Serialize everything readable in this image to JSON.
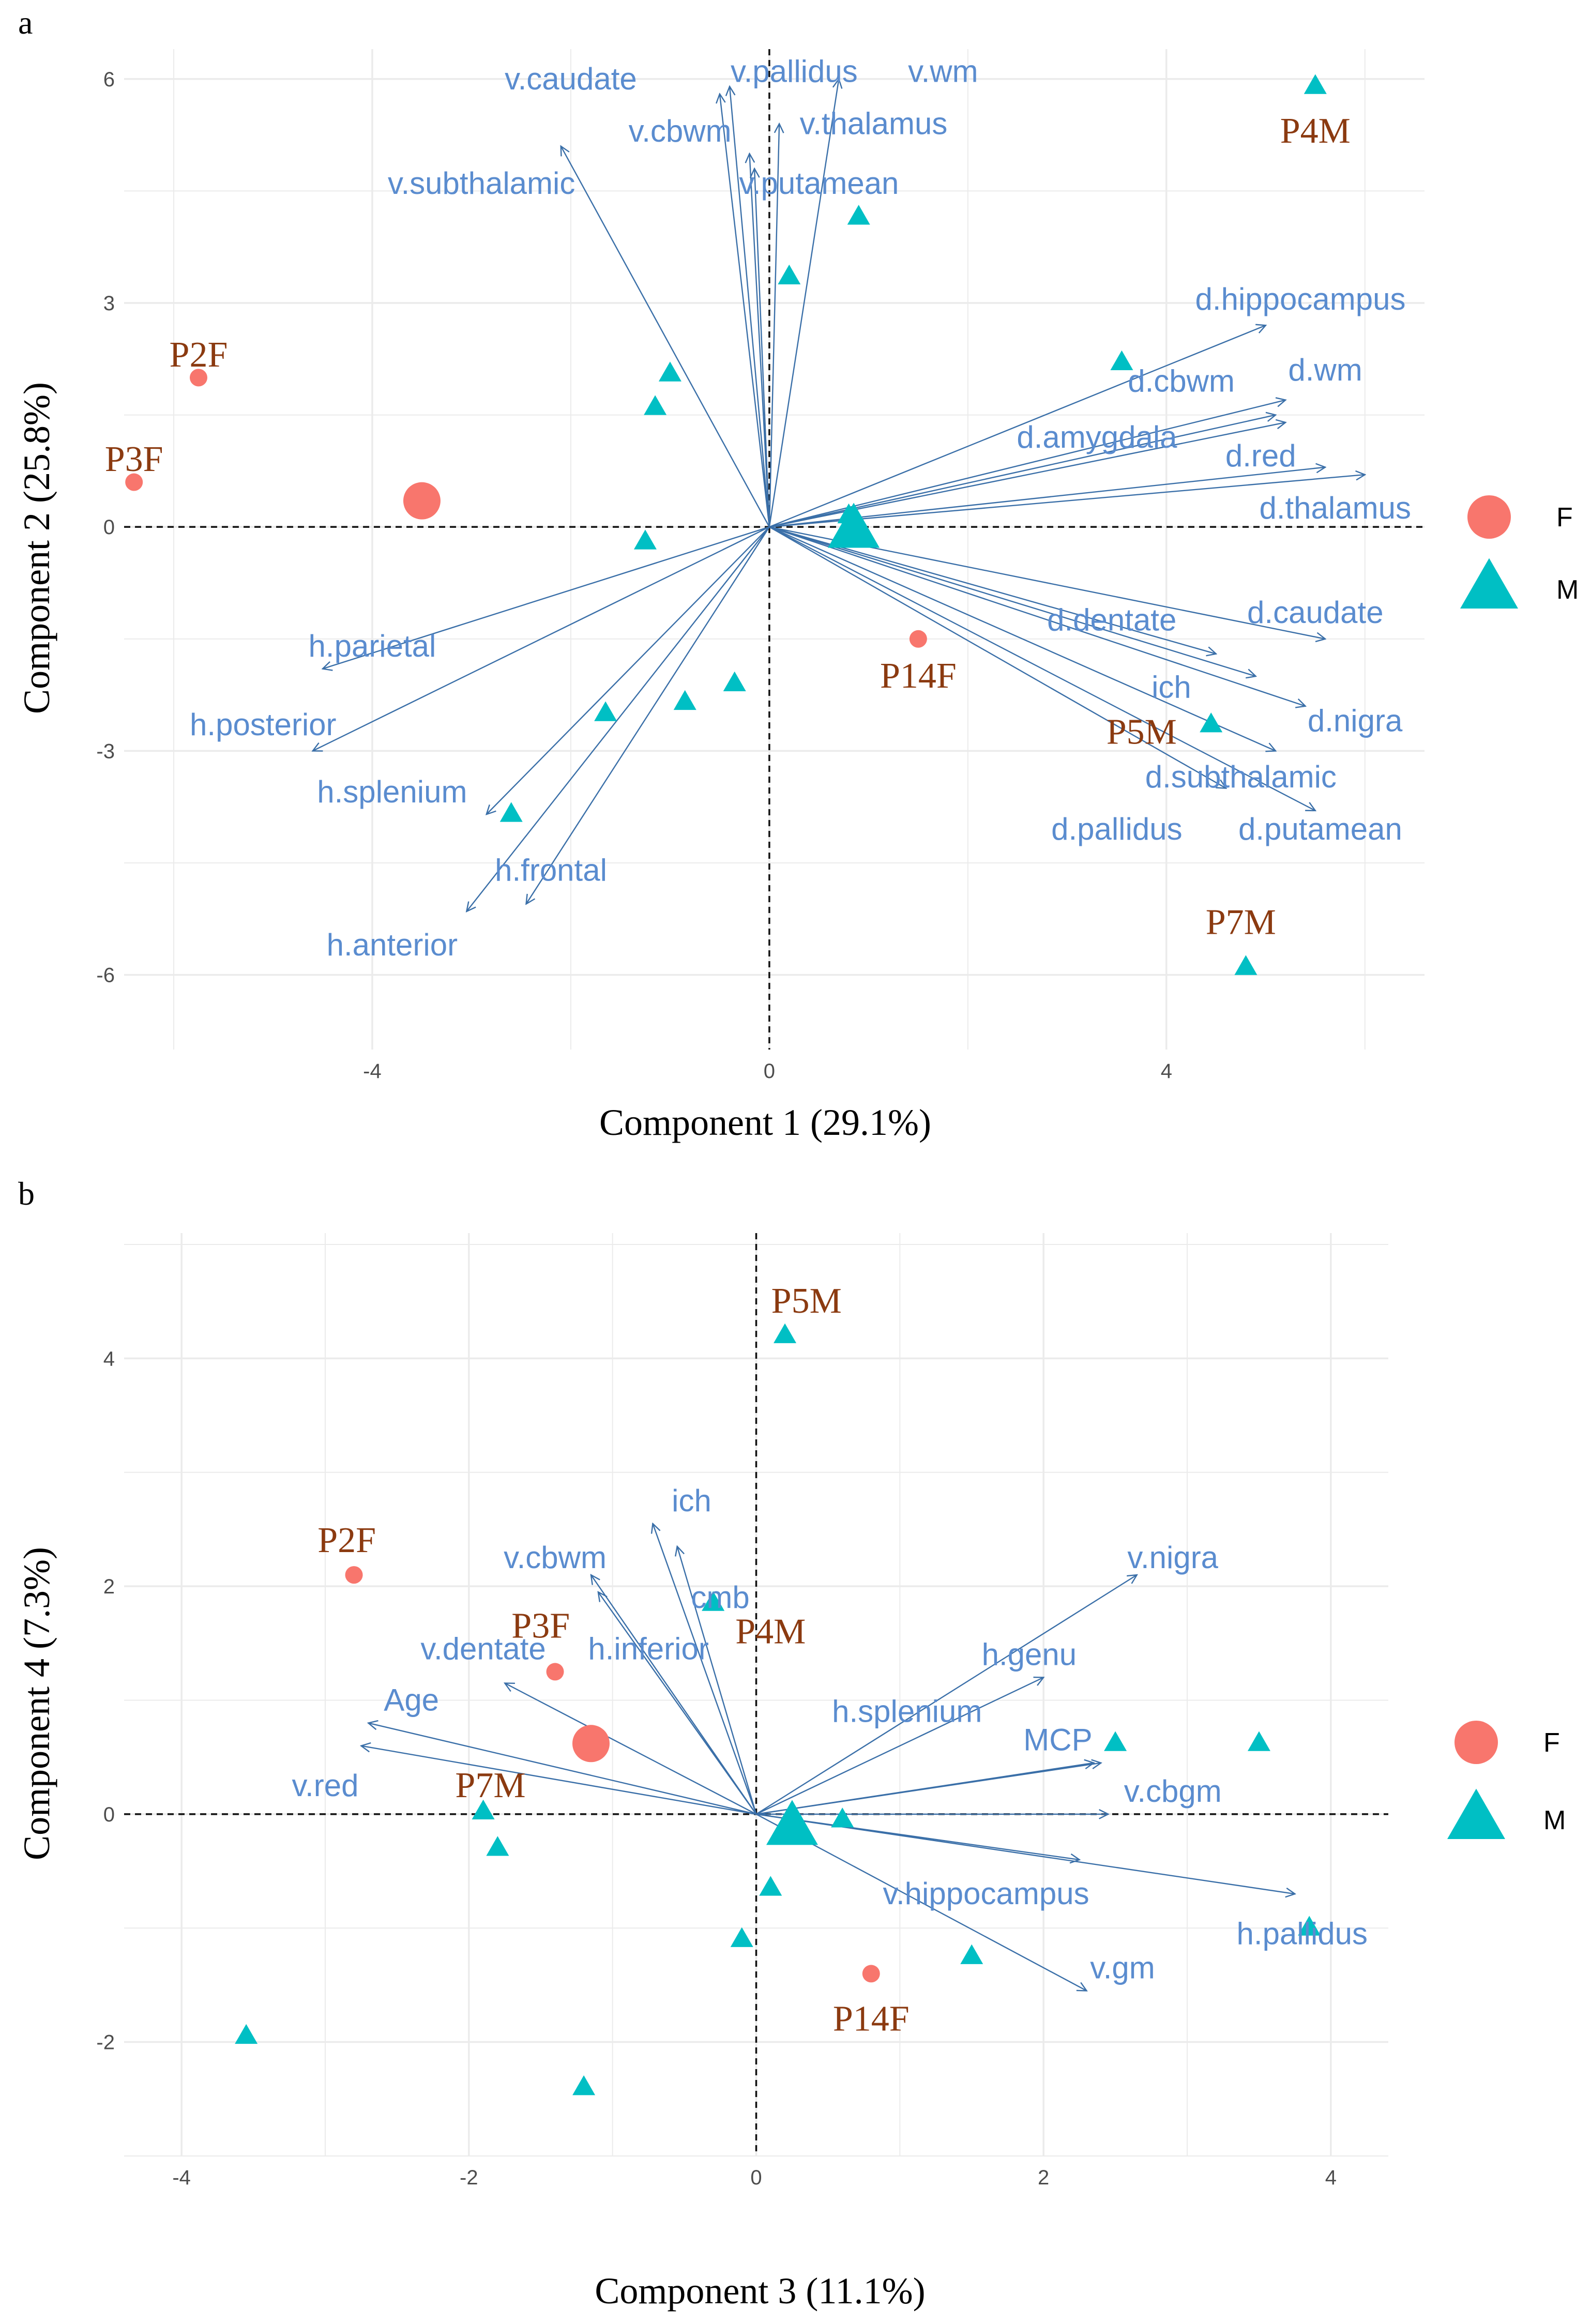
{
  "colors": {
    "panel_bg": "#ffffff",
    "grid": "#ebebeb",
    "arrow": "#3a6fa8",
    "var_label": "#5a8ccf",
    "female": "#f8766d",
    "male": "#00bfc4",
    "patient_label": "#8b3a10",
    "axis_text": "#4d4d4d",
    "zero_line": "#111111"
  },
  "chart_data": [
    {
      "type": "scatter",
      "panel_label": "a",
      "subtype": "biplot",
      "xlabel": "Component 1 (29.1%)",
      "ylabel": "Component 2 (25.8%)",
      "xlim": [
        -6.5,
        6.6
      ],
      "ylim": [
        -7.0,
        6.4
      ],
      "xticks": [
        {
          "v": -4,
          "t": "-4"
        },
        {
          "v": 0,
          "t": "0"
        },
        {
          "v": 4,
          "t": "4"
        }
      ],
      "yticks": [
        {
          "v": -6,
          "t": "-6"
        },
        {
          "v": -3,
          "t": "-3"
        },
        {
          "v": 0,
          "t": "0"
        },
        {
          "v": 3,
          "t": "3"
        },
        {
          "v": 6,
          "t": "6"
        }
      ],
      "legend": {
        "position": "right",
        "entries": [
          {
            "key": "F",
            "label": "F"
          },
          {
            "key": "M",
            "label": "M"
          }
        ]
      },
      "loadings": [
        {
          "name": "v.caudate",
          "x": -2.1,
          "y": 5.1,
          "lx": -2.0,
          "ly": 6.0
        },
        {
          "name": "v.pallidus",
          "x": -0.4,
          "y": 5.9,
          "lx": 0.25,
          "ly": 6.1
        },
        {
          "name": "v.wm",
          "x": 0.7,
          "y": 6.0,
          "lx": 1.75,
          "ly": 6.1
        },
        {
          "name": "v.cbwm",
          "x": -0.5,
          "y": 5.8,
          "lx": -0.9,
          "ly": 5.3
        },
        {
          "name": "v.thalamus",
          "x": 0.1,
          "y": 5.4,
          "lx": 1.05,
          "ly": 5.4
        },
        {
          "name": "v.subthalamic",
          "x": -0.15,
          "y": 4.8,
          "lx": -2.9,
          "ly": 4.6
        },
        {
          "name": "v.putamean",
          "x": -0.2,
          "y": 5.0,
          "lx": 0.5,
          "ly": 4.6
        },
        {
          "name": "d.hippocampus",
          "x": 5.0,
          "y": 2.7,
          "lx": 5.35,
          "ly": 3.05
        },
        {
          "name": "d.wm",
          "x": 5.2,
          "y": 1.7,
          "lx": 5.6,
          "ly": 2.1
        },
        {
          "name": "d.cbwm",
          "x": 5.1,
          "y": 1.5,
          "lx": 4.15,
          "ly": 1.95
        },
        {
          "name": "d.amygdala",
          "x": 5.2,
          "y": 1.4,
          "lx": 3.3,
          "ly": 1.2
        },
        {
          "name": "d.red",
          "x": 5.6,
          "y": 0.8,
          "lx": 4.95,
          "ly": 0.95
        },
        {
          "name": "d.thalamus",
          "x": 6.0,
          "y": 0.7,
          "lx": 5.7,
          "ly": 0.25
        },
        {
          "name": "d.dentate",
          "x": 4.5,
          "y": -1.7,
          "lx": 3.45,
          "ly": -1.25
        },
        {
          "name": "d.caudate",
          "x": 5.6,
          "y": -1.5,
          "lx": 5.5,
          "ly": -1.15
        },
        {
          "name": "ich",
          "x": 4.9,
          "y": -2.0,
          "lx": 4.05,
          "ly": -2.15
        },
        {
          "name": "d.nigra",
          "x": 5.4,
          "y": -2.4,
          "lx": 5.9,
          "ly": -2.6
        },
        {
          "name": "d.subthalamic",
          "x": 5.1,
          "y": -3.0,
          "lx": 4.75,
          "ly": -3.35
        },
        {
          "name": "d.pallidus",
          "x": 4.6,
          "y": -3.5,
          "lx": 3.5,
          "ly": -4.05
        },
        {
          "name": "d.putamean",
          "x": 5.5,
          "y": -3.8,
          "lx": 5.55,
          "ly": -4.05
        },
        {
          "name": "h.parietal",
          "x": -4.5,
          "y": -1.9,
          "lx": -4.0,
          "ly": -1.6
        },
        {
          "name": "h.posterior",
          "x": -4.6,
          "y": -3.0,
          "lx": -5.1,
          "ly": -2.65
        },
        {
          "name": "h.splenium",
          "x": -2.85,
          "y": -3.85,
          "lx": -3.8,
          "ly": -3.55
        },
        {
          "name": "h.frontal",
          "x": -2.45,
          "y": -5.05,
          "lx": -2.2,
          "ly": -4.6
        },
        {
          "name": "h.anterior",
          "x": -3.05,
          "y": -5.15,
          "lx": -3.8,
          "ly": -5.6
        }
      ],
      "points": [
        {
          "label": "P2F",
          "group": "F",
          "x": -5.75,
          "y": 2.0,
          "lx": -5.75,
          "ly": 2.3
        },
        {
          "label": "P3F",
          "group": "F",
          "x": -6.4,
          "y": 0.6,
          "lx": -6.4,
          "ly": 0.9
        },
        {
          "label": "P14F",
          "group": "F",
          "x": 1.5,
          "y": -1.5,
          "lx": 1.5,
          "ly": -2.0
        },
        {
          "label": "",
          "group": "M",
          "x": 5.5,
          "y": 5.9
        },
        {
          "label": "",
          "group": "M",
          "x": 0.9,
          "y": 4.15
        },
        {
          "label": "",
          "group": "M",
          "x": 0.2,
          "y": 3.35
        },
        {
          "label": "",
          "group": "M",
          "x": 3.55,
          "y": 2.2
        },
        {
          "label": "",
          "group": "M",
          "x": -1.0,
          "y": 2.05
        },
        {
          "label": "",
          "group": "M",
          "x": -1.15,
          "y": 1.6
        },
        {
          "label": "",
          "group": "M",
          "x": 0.8,
          "y": 0.15
        },
        {
          "label": "",
          "group": "M",
          "x": -1.25,
          "y": -0.2
        },
        {
          "label": "",
          "group": "M",
          "x": -0.35,
          "y": -2.1
        },
        {
          "label": "",
          "group": "M",
          "x": -0.85,
          "y": -2.35
        },
        {
          "label": "",
          "group": "M",
          "x": -1.65,
          "y": -2.5
        },
        {
          "label": "",
          "group": "M",
          "x": -2.6,
          "y": -3.85
        },
        {
          "label": "",
          "group": "M",
          "x": 4.45,
          "y": -2.65
        },
        {
          "label": "",
          "group": "M",
          "x": 4.8,
          "y": -5.9
        }
      ],
      "point_labels": [
        {
          "label": "P4M",
          "x": 5.5,
          "y": 5.3
        },
        {
          "label": "P5M",
          "x": 3.75,
          "y": -2.75
        },
        {
          "label": "P7M",
          "x": 4.75,
          "y": -5.3
        }
      ],
      "centroids": [
        {
          "group": "F",
          "x": -3.5,
          "y": 0.35
        },
        {
          "group": "M",
          "x": 0.85,
          "y": -0.05
        }
      ]
    },
    {
      "type": "scatter",
      "panel_label": "b",
      "subtype": "biplot",
      "xlabel": "Component 3 (11.1%)",
      "ylabel": "Component 4 (7.3%)",
      "xlim": [
        -4.4,
        4.4
      ],
      "ylim": [
        -3.0,
        5.1
      ],
      "xticks": [
        {
          "v": -4,
          "t": "-4"
        },
        {
          "v": -2,
          "t": "-2"
        },
        {
          "v": 0,
          "t": "0"
        },
        {
          "v": 2,
          "t": "2"
        },
        {
          "v": 4,
          "t": "4"
        }
      ],
      "yticks": [
        {
          "v": -2,
          "t": "-2"
        },
        {
          "v": 0,
          "t": "0"
        },
        {
          "v": 2,
          "t": "2"
        },
        {
          "v": 4,
          "t": "4"
        }
      ],
      "legend": {
        "position": "right",
        "entries": [
          {
            "key": "F",
            "label": "F"
          },
          {
            "key": "M",
            "label": "M"
          }
        ]
      },
      "loadings": [
        {
          "name": "ich",
          "x": -0.72,
          "y": 2.55,
          "lx": -0.45,
          "ly": 2.75
        },
        {
          "name": "v.cbwm",
          "x": -1.15,
          "y": 2.1,
          "lx": -1.4,
          "ly": 2.25
        },
        {
          "name": "cmb",
          "x": -0.55,
          "y": 2.35,
          "lx": -0.25,
          "ly": 1.9
        },
        {
          "name": "h.inferior",
          "x": -1.1,
          "y": 1.95,
          "lx": -0.75,
          "ly": 1.45
        },
        {
          "name": "v.dentate",
          "x": -1.75,
          "y": 1.15,
          "lx": -1.9,
          "ly": 1.45
        },
        {
          "name": "Age",
          "x": -2.7,
          "y": 0.8,
          "lx": -2.4,
          "ly": 1.0
        },
        {
          "name": "v.red",
          "x": -2.75,
          "y": 0.6,
          "lx": -3.0,
          "ly": 0.25
        },
        {
          "name": "v.nigra",
          "x": 2.65,
          "y": 2.1,
          "lx": 2.9,
          "ly": 2.25
        },
        {
          "name": "h.genu",
          "x": 2.0,
          "y": 1.2,
          "lx": 1.9,
          "ly": 1.4
        },
        {
          "name": "h.splenium",
          "x": 2.35,
          "y": 0.45,
          "lx": 1.05,
          "ly": 0.9
        },
        {
          "name": "MCP",
          "x": 2.4,
          "y": 0.45,
          "lx": 2.1,
          "ly": 0.65
        },
        {
          "name": "v.cbgm",
          "x": 2.45,
          "y": 0.0,
          "lx": 2.9,
          "ly": 0.2
        },
        {
          "name": "v.hippocampus",
          "x": 2.25,
          "y": -0.4,
          "lx": 1.6,
          "ly": -0.7
        },
        {
          "name": "h.pallidus",
          "x": 3.75,
          "y": -0.7,
          "lx": 3.8,
          "ly": -1.05
        },
        {
          "name": "v.gm",
          "x": 2.3,
          "y": -1.55,
          "lx": 2.55,
          "ly": -1.35
        }
      ],
      "points": [
        {
          "label": "P2F",
          "group": "F",
          "x": -2.8,
          "y": 2.1,
          "lx": -2.85,
          "ly": 2.4
        },
        {
          "label": "P3F",
          "group": "F",
          "x": -1.4,
          "y": 1.25,
          "lx": -1.5,
          "ly": 1.65
        },
        {
          "label": "P14F",
          "group": "F",
          "x": 0.8,
          "y": -1.4,
          "lx": 0.8,
          "ly": -1.8
        },
        {
          "label": "P5M",
          "group": "M",
          "x": 0.2,
          "y": 4.2,
          "lx": 0.35,
          "ly": 4.5
        },
        {
          "label": "P4M",
          "group": "M",
          "x": -0.3,
          "y": 1.85,
          "lx": 0.1,
          "ly": 1.6
        },
        {
          "label": "P7M",
          "group": "M",
          "x": -1.9,
          "y": 0.02,
          "lx": -1.85,
          "ly": 0.25
        },
        {
          "label": "",
          "group": "M",
          "x": 2.5,
          "y": 0.62
        },
        {
          "label": "",
          "group": "M",
          "x": 3.5,
          "y": 0.62
        },
        {
          "label": "",
          "group": "M",
          "x": 0.6,
          "y": -0.05
        },
        {
          "label": "",
          "group": "M",
          "x": 0.1,
          "y": -0.65
        },
        {
          "label": "",
          "group": "M",
          "x": -0.1,
          "y": -1.1
        },
        {
          "label": "",
          "group": "M",
          "x": 1.5,
          "y": -1.25
        },
        {
          "label": "",
          "group": "M",
          "x": 3.85,
          "y": -1.0
        },
        {
          "label": "",
          "group": "M",
          "x": -1.8,
          "y": -0.3
        },
        {
          "label": "",
          "group": "M",
          "x": -3.55,
          "y": -1.95
        },
        {
          "label": "",
          "group": "M",
          "x": -1.2,
          "y": -2.4
        }
      ],
      "point_labels": [],
      "centroids": [
        {
          "group": "F",
          "x": -1.15,
          "y": 0.62
        },
        {
          "group": "M",
          "x": 0.25,
          "y": -0.12
        }
      ]
    }
  ]
}
